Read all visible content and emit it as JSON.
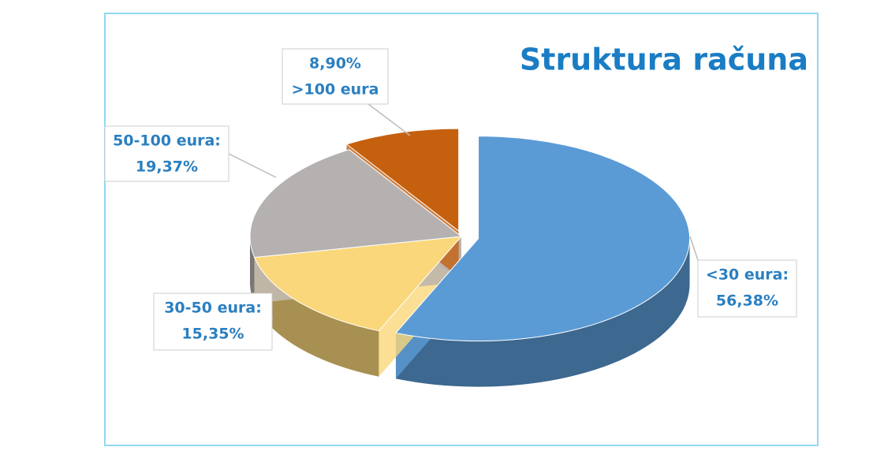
{
  "chart_data": {
    "type": "pie3d",
    "title": "Struktura računa",
    "categories": [
      "<30 eura:",
      "30-50 eura:",
      "50-100 eura:",
      ">100 eura"
    ],
    "values": [
      56.38,
      15.35,
      19.37,
      8.9
    ],
    "value_labels": [
      "56,38%",
      "15,35%",
      "19,37%",
      "8,90%"
    ],
    "colors": [
      "#5b9bd5",
      "#f9d77a",
      "#b5b1b1",
      "#c5600f"
    ]
  }
}
